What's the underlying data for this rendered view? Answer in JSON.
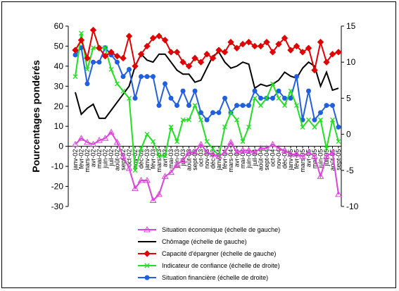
{
  "chart_data": {
    "type": "line",
    "ylabel": "Pourcentages pondérés",
    "ylim_left": [
      -30,
      60
    ],
    "yticks_left": [
      "60",
      "50",
      "40",
      "30",
      "20",
      "10",
      "0",
      "-10",
      "-20",
      "-30"
    ],
    "ylim_right": [
      -10,
      15
    ],
    "yticks_right": [
      "15",
      "10",
      "5",
      "0",
      "-5",
      "-10"
    ],
    "grid": false,
    "legend_position": "bottom",
    "categories": [
      "janv-02",
      "févr-02",
      "mars-02",
      "avr-02",
      "mai-02",
      "juin-02",
      "juil-02",
      "août-02",
      "sept-02",
      "oct-02",
      "nov-02",
      "déc-02",
      "janv-03",
      "févr-03",
      "mars-03",
      "avr-03",
      "mai-03",
      "juin-03",
      "juil-03",
      "août-03",
      "sept-03",
      "oct-03",
      "nov-03",
      "déc-03",
      "janv-04",
      "févr-04",
      "mars-04",
      "avr-04",
      "mai-04",
      "juin-04",
      "juil-04",
      "août-04",
      "sept-04",
      "oct-04",
      "nov-04",
      "déc-04",
      "janv-05",
      "févr-05",
      "mars-05",
      "avr-05",
      "mai-05",
      "juin-05",
      "juil-05",
      "août-05",
      "sept-05"
    ],
    "series": [
      {
        "name": "Situation économique (échelle de gauche)",
        "axis": "left",
        "color": "#e040e0",
        "marker": "triangle",
        "values": [
          1,
          4,
          2,
          1,
          3,
          4,
          7,
          2,
          -5,
          -11,
          -21,
          -17,
          -17,
          -27,
          -24,
          -15,
          -13,
          -9,
          -7,
          -3,
          -3,
          1,
          -3,
          -4,
          -5,
          -3,
          2,
          -3,
          -2,
          -2,
          -3,
          -1,
          -1,
          1,
          -1,
          -2,
          -4,
          -4,
          -5,
          -3,
          -5,
          -15,
          -5,
          -3,
          -24
        ]
      },
      {
        "name": "Chômage (échelle de gauche)",
        "axis": "left",
        "color": "#000000",
        "marker": "none",
        "values": [
          27,
          16,
          19,
          21,
          14,
          14,
          18,
          22,
          26,
          30,
          40,
          46,
          43,
          42,
          46,
          46,
          42,
          38,
          36,
          36,
          32,
          33,
          39,
          45,
          47,
          42,
          39,
          40,
          42,
          41,
          29,
          31,
          30,
          31,
          33,
          37,
          35,
          34,
          39,
          42,
          40,
          30,
          37,
          28,
          29
        ]
      },
      {
        "name": "Capacité d'épargner (échelle de gauche)",
        "axis": "left",
        "color": "#e00000",
        "marker": "diamond",
        "values": [
          48,
          53,
          44,
          58,
          49,
          45,
          47,
          45,
          44,
          55,
          40,
          46,
          50,
          54,
          55,
          53,
          47,
          47,
          42,
          40,
          44,
          42,
          46,
          44,
          48,
          47,
          52,
          49,
          51,
          52,
          50,
          50,
          52,
          47,
          51,
          54,
          48,
          50,
          47,
          49,
          38,
          52,
          42,
          46,
          47
        ]
      },
      {
        "name": "Indicateur de confiance (échelle de droite)",
        "axis": "right",
        "color": "#20e020",
        "marker": "x",
        "values": [
          8,
          14,
          9,
          12,
          12,
          12,
          9,
          7,
          6,
          5,
          -5,
          -2,
          0,
          -1,
          -3,
          -3,
          1,
          -1,
          2,
          2,
          4,
          2,
          -1,
          -2,
          -3,
          1,
          3,
          2,
          -1,
          1,
          5,
          4,
          5,
          7,
          5,
          4,
          6,
          4,
          1,
          2,
          1,
          2,
          -2,
          2,
          -1
        ]
      },
      {
        "name": "Situation financière (échelle de droite)",
        "axis": "right",
        "color": "#2060e0",
        "marker": "circle",
        "values": [
          11,
          12,
          7,
          10,
          10,
          12,
          11,
          10,
          8,
          9,
          5,
          8,
          8,
          8,
          4,
          7,
          5,
          4,
          6,
          4,
          6,
          3,
          2,
          3,
          3,
          5,
          3,
          4,
          4,
          4,
          6,
          5,
          5,
          5,
          6,
          5,
          5,
          8,
          2,
          6,
          2,
          3,
          4,
          4,
          1
        ]
      }
    ]
  }
}
